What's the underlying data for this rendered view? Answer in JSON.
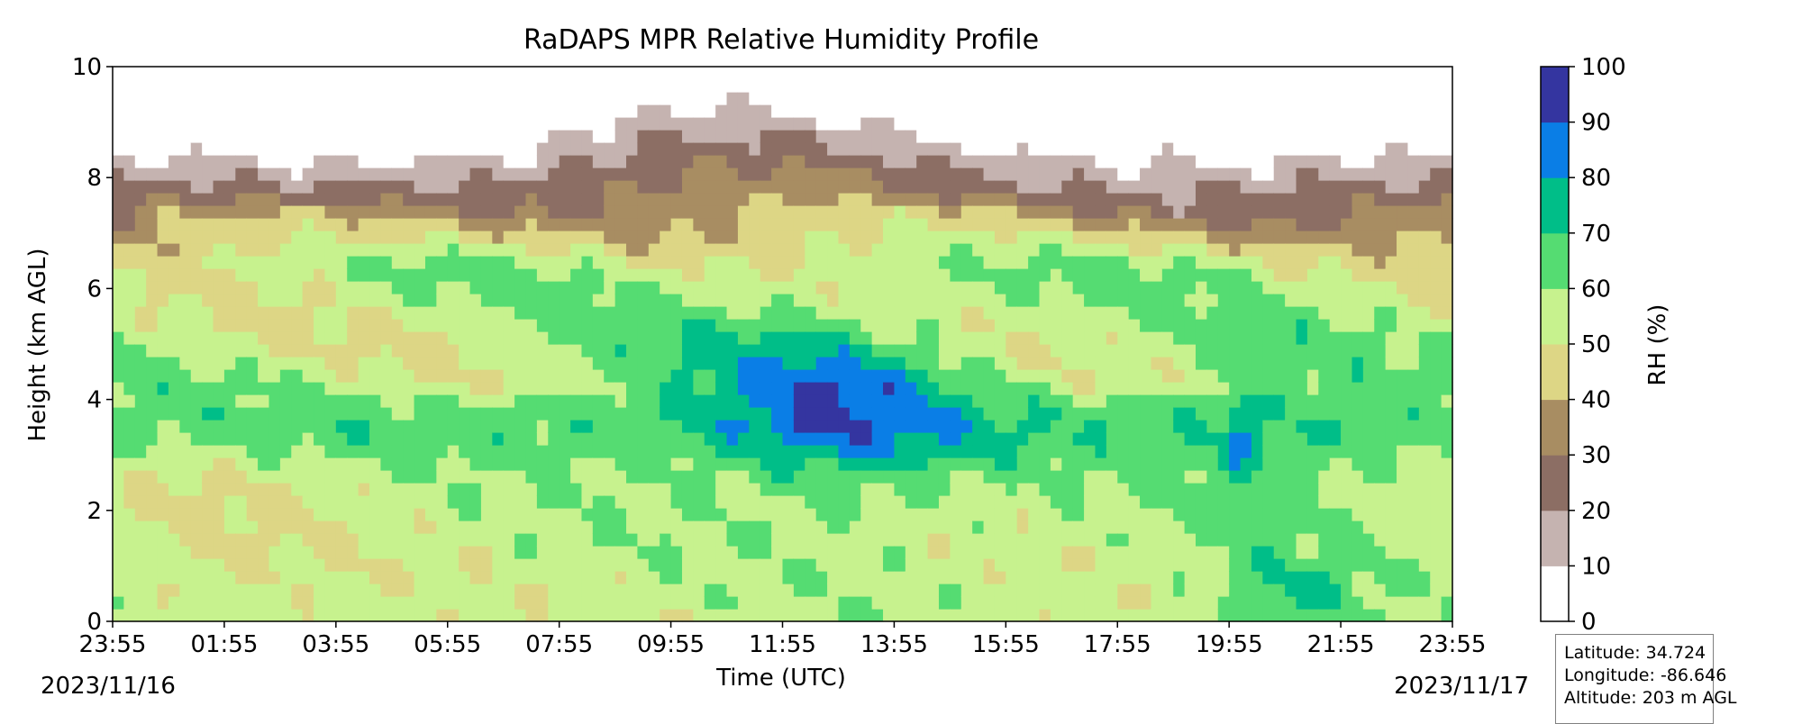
{
  "chart_data": {
    "type": "heatmap",
    "title": "RaDAPS MPR Relative Humidity Profile",
    "xlabel": "Time (UTC)",
    "ylabel": "Height (km AGL)",
    "x_ticks": [
      "23:55",
      "01:55",
      "03:55",
      "05:55",
      "07:55",
      "09:55",
      "11:55",
      "13:55",
      "15:55",
      "17:55",
      "19:55",
      "21:55",
      "23:55"
    ],
    "x_start_date": "2023/11/16",
    "x_end_date": "2023/11/17",
    "y_ticks": [
      0,
      2,
      4,
      6,
      8,
      10
    ],
    "ylim": [
      0,
      10
    ],
    "colorbar": {
      "label": "RH (%)",
      "ticks": [
        0,
        10,
        20,
        30,
        40,
        50,
        60,
        70,
        80,
        90,
        100
      ],
      "levels": [
        {
          "min": 0,
          "max": 10,
          "color": "#ffffff"
        },
        {
          "min": 10,
          "max": 20,
          "color": "#c5b3b0"
        },
        {
          "min": 20,
          "max": 30,
          "color": "#8c6e64"
        },
        {
          "min": 30,
          "max": 40,
          "color": "#a88d62"
        },
        {
          "min": 40,
          "max": 50,
          "color": "#ddd685"
        },
        {
          "min": 50,
          "max": 60,
          "color": "#c7f28e"
        },
        {
          "min": 60,
          "max": 70,
          "color": "#55dc72"
        },
        {
          "min": 70,
          "max": 80,
          "color": "#00be88"
        },
        {
          "min": 80,
          "max": 90,
          "color": "#0a7ee6"
        },
        {
          "min": 90,
          "max": 100,
          "color": "#3435a0"
        }
      ]
    },
    "site": {
      "latitude": "Latitude: 34.724",
      "longitude": "Longitude: -86.646",
      "altitude": "Altitude: 203 m AGL"
    }
  }
}
